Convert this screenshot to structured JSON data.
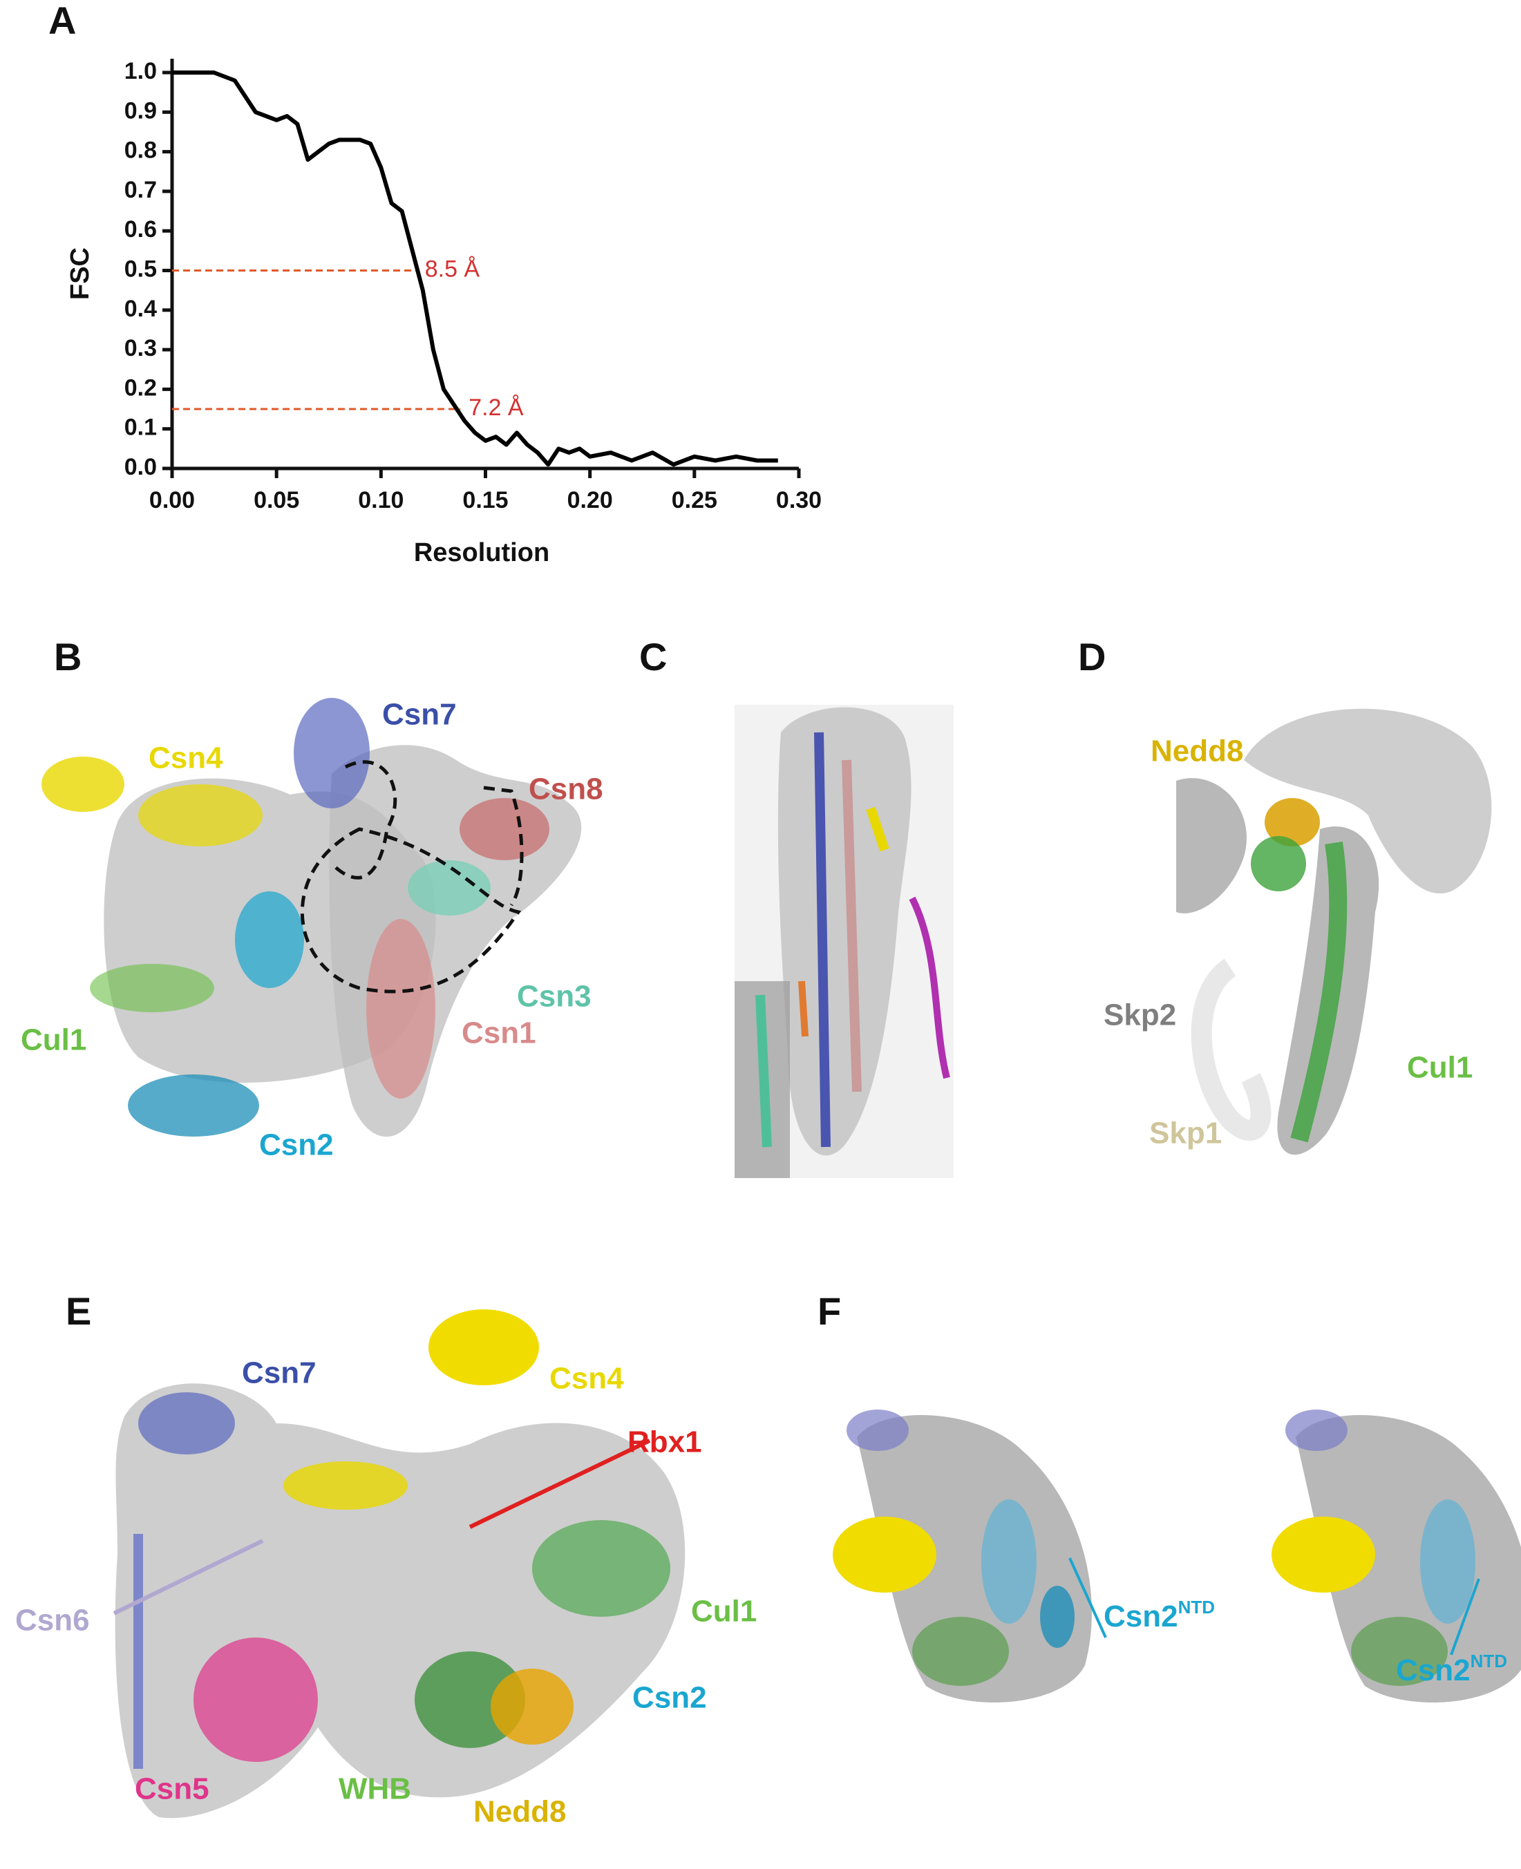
{
  "chart_data": {
    "type": "line",
    "panel": "A",
    "x_label": "Resolution",
    "y_label": "FSC",
    "x": [
      0,
      0.02,
      0.03,
      0.04,
      0.05,
      0.055,
      0.06,
      0.065,
      0.07,
      0.075,
      0.08,
      0.09,
      0.095,
      0.1,
      0.105,
      0.11,
      0.115,
      0.12,
      0.125,
      0.13,
      0.135,
      0.14,
      0.145,
      0.15,
      0.155,
      0.16,
      0.165,
      0.17,
      0.175,
      0.18,
      0.185,
      0.19,
      0.195,
      0.2,
      0.21,
      0.22,
      0.23,
      0.24,
      0.25,
      0.26,
      0.27,
      0.28,
      0.29
    ],
    "values": [
      1.0,
      1.0,
      0.98,
      0.9,
      0.88,
      0.89,
      0.87,
      0.78,
      0.8,
      0.82,
      0.83,
      0.83,
      0.82,
      0.76,
      0.67,
      0.65,
      0.55,
      0.45,
      0.3,
      0.2,
      0.16,
      0.12,
      0.09,
      0.07,
      0.08,
      0.06,
      0.09,
      0.06,
      0.04,
      0.01,
      0.05,
      0.04,
      0.05,
      0.03,
      0.04,
      0.02,
      0.04,
      0.01,
      0.03,
      0.02,
      0.03,
      0.02,
      0.02
    ],
    "color": "#000000",
    "xlim": [
      0,
      0.3
    ],
    "xticks": [
      {
        "value": 0,
        "label": "0.00"
      },
      0.05,
      {
        "value": 0.1,
        "label": "0.10"
      },
      0.15,
      {
        "value": 0.2,
        "label": "0.20"
      },
      0.25,
      {
        "value": 0.3,
        "label": "0.30"
      }
    ],
    "ylim": [
      0,
      1
    ],
    "yticks": [
      {
        "value": 0,
        "label": "0.0"
      },
      0.1,
      0.2,
      0.3,
      0.4,
      0.5,
      0.6,
      0.7,
      0.8,
      0.9,
      {
        "value": 1,
        "label": "1.0"
      }
    ],
    "annotations": [
      {
        "label": "8.5 Å",
        "x": 0.117,
        "y": 0.5
      },
      {
        "label": "7.2 Å",
        "x": 0.138,
        "y": 0.15
      }
    ],
    "annotation_color": "#e0592a"
  },
  "panels": {
    "B": {
      "letter": "B",
      "labels": [
        "Csn7",
        "Csn4",
        "Csn8",
        "Csn3",
        "Cul1",
        "Csn1",
        "Csn2"
      ]
    },
    "C": {
      "letter": "C"
    },
    "D": {
      "letter": "D",
      "labels": [
        "Nedd8",
        "Skp2",
        "Cul1",
        "Skp1"
      ]
    },
    "E": {
      "letter": "E",
      "labels": [
        "Csn7",
        "Csn4",
        "Rbx1",
        "Csn6",
        "Cul1",
        "Csn2",
        "Csn5",
        "WHB",
        "Nedd8"
      ]
    },
    "F": {
      "letter": "F",
      "labels": [
        {
          "text": "Csn2",
          "sup": "NTD"
        },
        {
          "text": "Csn2",
          "sup": "NTD"
        }
      ]
    }
  }
}
